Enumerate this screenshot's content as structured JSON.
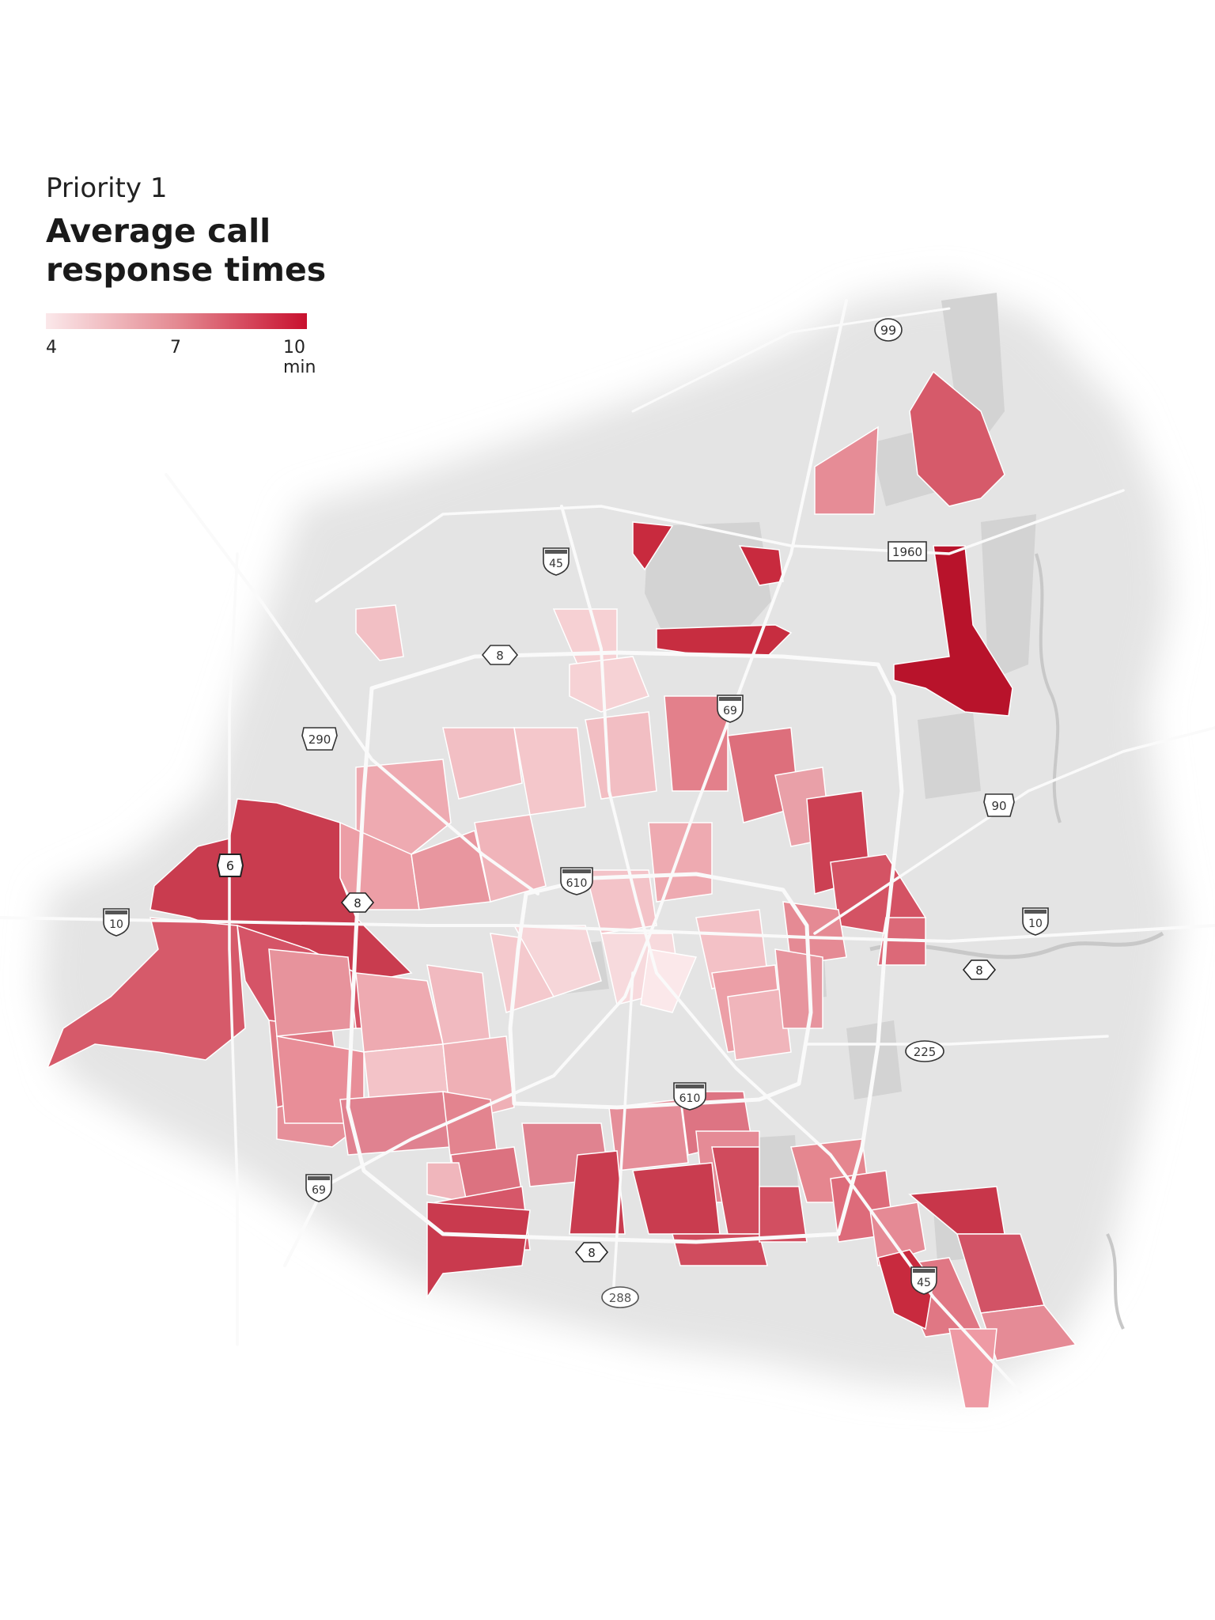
{
  "header": {
    "kicker": "Priority 1",
    "title_line1": "Average call",
    "title_line2": "response times"
  },
  "legend": {
    "min_label": "4",
    "mid_label": "7",
    "max_label": "10 min",
    "scale_min": 4,
    "scale_mid": 7,
    "scale_max": 10,
    "color_low": "#fbe5e7",
    "color_high": "#c8102e"
  },
  "road_labels": {
    "hwy_99": "99",
    "fm_1960": "1960",
    "i45_north": "45",
    "bw8_north": "8",
    "i69_north": "69",
    "us290": "290",
    "us90": "90",
    "sh6": "6",
    "bw8_west": "8",
    "i10_west": "10",
    "i610_north": "610",
    "i10_east": "10",
    "bw8_east": "8",
    "sh225": "225",
    "i610_south": "610",
    "i69_south": "69",
    "bw8_south": "8",
    "sh288": "288",
    "i45_south": "45"
  },
  "colors": {
    "land": "#e6e6e6",
    "unincorporated": "#d2d2d2",
    "roads": "#ffffff",
    "water": "#c9c9c9"
  }
}
